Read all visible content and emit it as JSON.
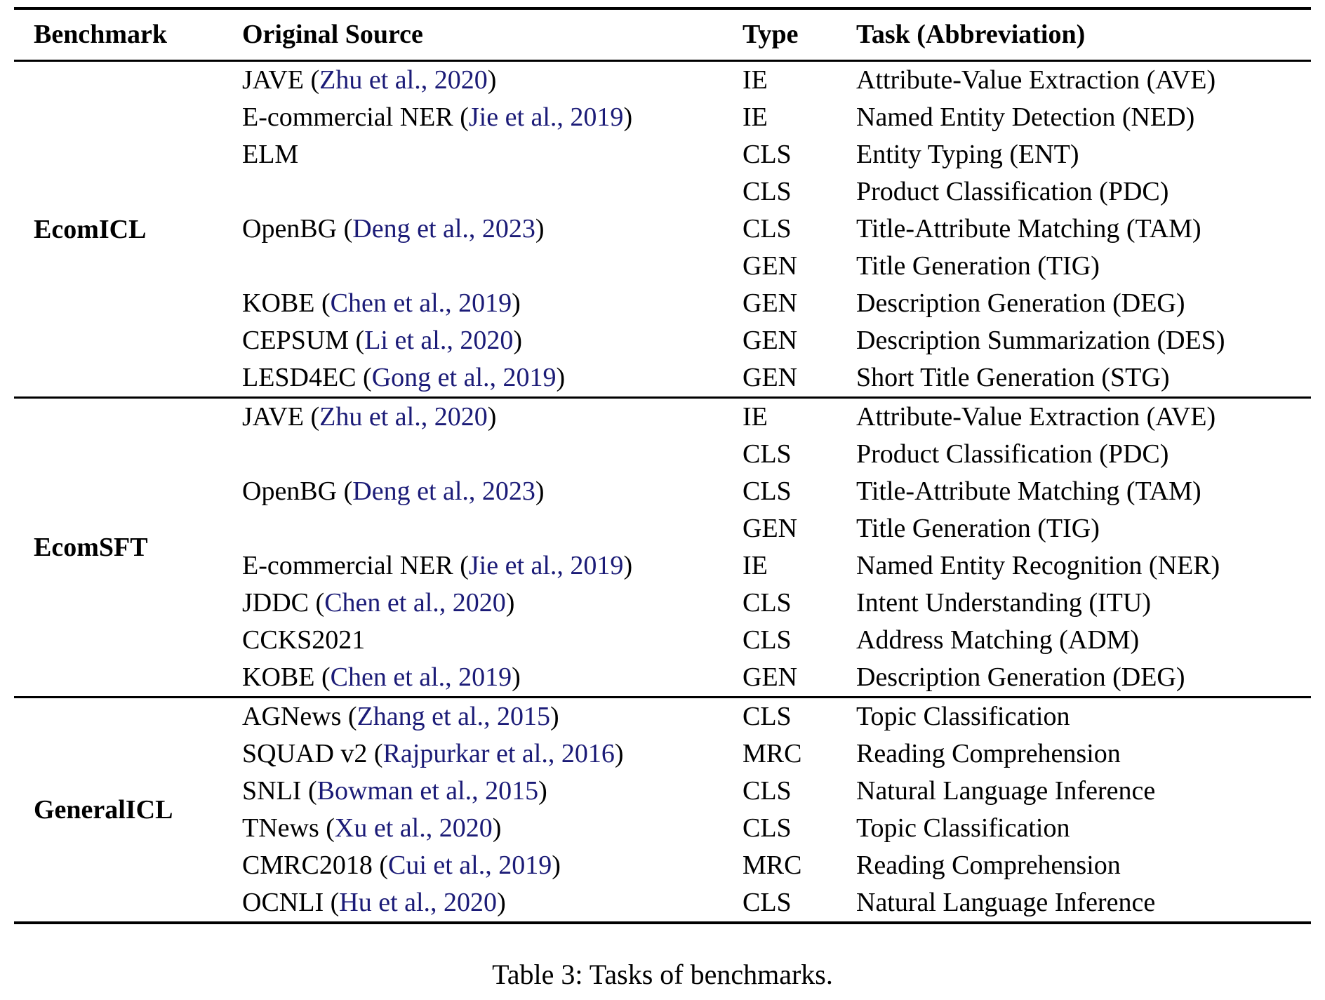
{
  "table": {
    "headers": {
      "benchmark": "Benchmark",
      "source": "Original Source",
      "type": "Type",
      "task": "Task (Abbreviation)"
    },
    "sections": [
      {
        "benchmark": "EcomICL",
        "rows": [
          {
            "source_pre": "JAVE (",
            "source_cite": "Zhu et al., 2020",
            "source_post": ")",
            "type": "IE",
            "task": "Attribute-Value Extraction (AVE)"
          },
          {
            "source_pre": "E-commercial NER (",
            "source_cite": "Jie et al., 2019",
            "source_post": ")",
            "type": "IE",
            "task": "Named Entity Detection (NED)"
          },
          {
            "source_pre": "ELM",
            "source_cite": "",
            "source_post": "",
            "type": "CLS",
            "task": "Entity Typing (ENT)"
          },
          {
            "source_pre": "",
            "source_cite": "",
            "source_post": "",
            "type": "CLS",
            "task": "Product Classification (PDC)"
          },
          {
            "source_pre": "OpenBG (",
            "source_cite": "Deng et al., 2023",
            "source_post": ")",
            "type": "CLS",
            "task": "Title-Attribute Matching (TAM)"
          },
          {
            "source_pre": "",
            "source_cite": "",
            "source_post": "",
            "type": "GEN",
            "task": "Title Generation (TIG)"
          },
          {
            "source_pre": "KOBE (",
            "source_cite": "Chen et al., 2019",
            "source_post": ")",
            "type": "GEN",
            "task": "Description Generation (DEG)"
          },
          {
            "source_pre": "CEPSUM (",
            "source_cite": "Li et al., 2020",
            "source_post": ")",
            "type": "GEN",
            "task": "Description Summarization (DES)"
          },
          {
            "source_pre": "LESD4EC (",
            "source_cite": "Gong et al., 2019",
            "source_post": ")",
            "type": "GEN",
            "task": "Short Title Generation (STG)"
          }
        ]
      },
      {
        "benchmark": "EcomSFT",
        "rows": [
          {
            "source_pre": "JAVE (",
            "source_cite": "Zhu et al., 2020",
            "source_post": ")",
            "type": "IE",
            "task": "Attribute-Value Extraction (AVE)"
          },
          {
            "source_pre": "",
            "source_cite": "",
            "source_post": "",
            "type": "CLS",
            "task": "Product Classification (PDC)"
          },
          {
            "source_pre": "OpenBG (",
            "source_cite": "Deng et al., 2023",
            "source_post": ")",
            "type": "CLS",
            "task": "Title-Attribute Matching (TAM)"
          },
          {
            "source_pre": "",
            "source_cite": "",
            "source_post": "",
            "type": "GEN",
            "task": "Title Generation (TIG)"
          },
          {
            "source_pre": "E-commercial NER (",
            "source_cite": "Jie et al., 2019",
            "source_post": ")",
            "type": "IE",
            "task": "Named Entity Recognition (NER)"
          },
          {
            "source_pre": "JDDC (",
            "source_cite": "Chen et al., 2020",
            "source_post": ")",
            "type": "CLS",
            "task": "Intent Understanding (ITU)"
          },
          {
            "source_pre": "CCKS2021",
            "source_cite": "",
            "source_post": "",
            "type": "CLS",
            "task": "Address Matching (ADM)"
          },
          {
            "source_pre": "KOBE (",
            "source_cite": "Chen et al., 2019",
            "source_post": ")",
            "type": "GEN",
            "task": "Description Generation (DEG)"
          }
        ]
      },
      {
        "benchmark": "GeneralICL",
        "rows": [
          {
            "source_pre": "AGNews (",
            "source_cite": "Zhang et al., 2015",
            "source_post": ")",
            "type": "CLS",
            "task": "Topic Classification"
          },
          {
            "source_pre": "SQUAD v2 (",
            "source_cite": "Rajpurkar et al., 2016",
            "source_post": ")",
            "type": "MRC",
            "task": "Reading Comprehension"
          },
          {
            "source_pre": "SNLI (",
            "source_cite": "Bowman et al., 2015",
            "source_post": ")",
            "type": "CLS",
            "task": "Natural Language Inference"
          },
          {
            "source_pre": "TNews (",
            "source_cite": "Xu et al., 2020",
            "source_post": ")",
            "type": "CLS",
            "task": "Topic Classification"
          },
          {
            "source_pre": "CMRC2018 (",
            "source_cite": "Cui et al., 2019",
            "source_post": ")",
            "type": "MRC",
            "task": "Reading Comprehension"
          },
          {
            "source_pre": "OCNLI (",
            "source_cite": "Hu et al., 2020",
            "source_post": ")",
            "type": "CLS",
            "task": "Natural Language Inference"
          }
        ]
      }
    ]
  },
  "caption": "Table 3: Tasks of benchmarks.",
  "colors": {
    "text": "#000000",
    "citation_link": "#1b1b77",
    "rule": "#000000"
  }
}
